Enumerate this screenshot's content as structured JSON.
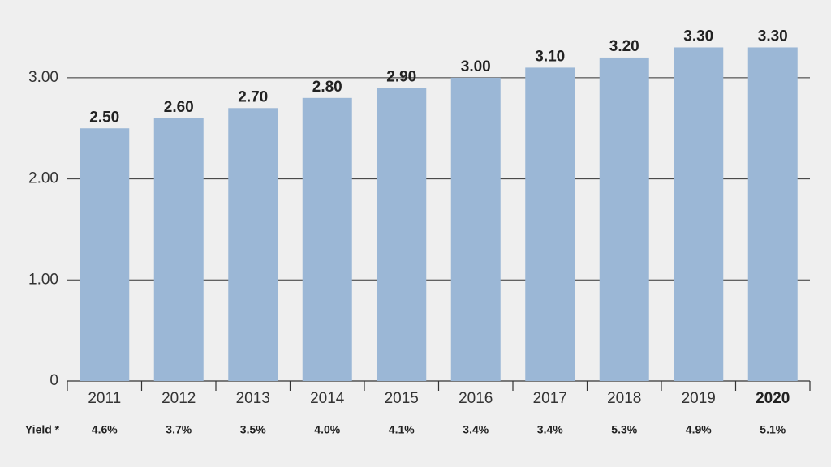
{
  "chart_data": {
    "type": "bar",
    "categories": [
      "2011",
      "2012",
      "2013",
      "2014",
      "2015",
      "2016",
      "2017",
      "2018",
      "2019",
      "2020"
    ],
    "values": [
      2.5,
      2.6,
      2.7,
      2.8,
      2.9,
      3.0,
      3.1,
      3.2,
      3.3,
      3.3
    ],
    "value_labels": [
      "2.50",
      "2.60",
      "2.70",
      "2.80",
      "2.90",
      "3.00",
      "3.10",
      "3.20",
      "3.30",
      "3.30"
    ],
    "color": "#9bb7d6",
    "ylim": [
      0,
      3.4
    ],
    "yticks": [
      0,
      {
        "value": 1,
        "label": "1.00"
      },
      {
        "value": 2,
        "label": "2.00"
      },
      {
        "value": 3,
        "label": "3.00"
      }
    ],
    "grid": true,
    "bold_last_category": true,
    "yield": {
      "label": "Yield *",
      "values": [
        "4.6%",
        "3.7%",
        "3.5%",
        "4.0%",
        "4.1%",
        "3.4%",
        "3.4%",
        "5.3%",
        "4.9%",
        "5.1%"
      ]
    }
  }
}
